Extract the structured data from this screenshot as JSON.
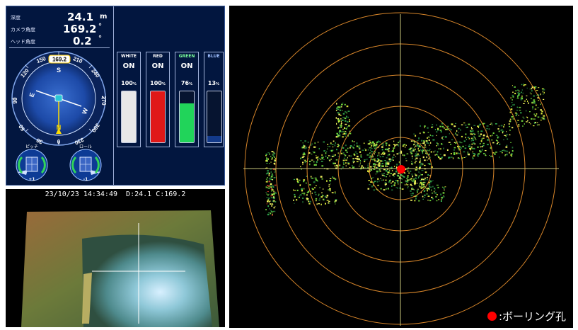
{
  "status": {
    "depth": {
      "label": "深度",
      "value": "24.1",
      "unit": "m"
    },
    "camera_angle": {
      "label": "カメラ角度",
      "value": "169.2",
      "unit": "°"
    },
    "head_angle": {
      "label": "ヘッド角度",
      "value": "0.2",
      "unit": "°"
    }
  },
  "compass": {
    "heading_label": "169.2",
    "heading_deg": 169.2,
    "ticks": [
      "150",
      "180",
      "210",
      "120",
      "240",
      "90",
      "270",
      "60",
      "300",
      "30",
      "330",
      "0"
    ],
    "cardinals": {
      "south": "S",
      "west": "W",
      "east": "E",
      "north": "N"
    }
  },
  "pitch": {
    "label": "ピッチ",
    "value": "+1"
  },
  "roll": {
    "label": "ロール",
    "value": "-1"
  },
  "lights": [
    {
      "name": "WHITE",
      "state": "ON",
      "percent": "100",
      "level": 100,
      "color": "#e8e8e8",
      "name_color": "#ffffff"
    },
    {
      "name": "RED",
      "state": "ON",
      "percent": "100",
      "level": 100,
      "color": "#e01818",
      "name_color": "#ffffff"
    },
    {
      "name": "GREEN",
      "state": "ON",
      "percent": "76",
      "level": 76,
      "color": "#21d45a",
      "name_color": "#7cff9c"
    },
    {
      "name": "BLUE",
      "state": "",
      "percent": "13",
      "level": 13,
      "color": "#133a8a",
      "name_color": "#9fbfff"
    }
  ],
  "percent_symbol": "%",
  "camera": {
    "datetime": "23/10/23 14:34:49",
    "overlay_info": "D:24.1 C:169.2"
  },
  "sonar": {
    "legend_label": ":ボーリング孔",
    "marker_color": "#ff0000"
  }
}
